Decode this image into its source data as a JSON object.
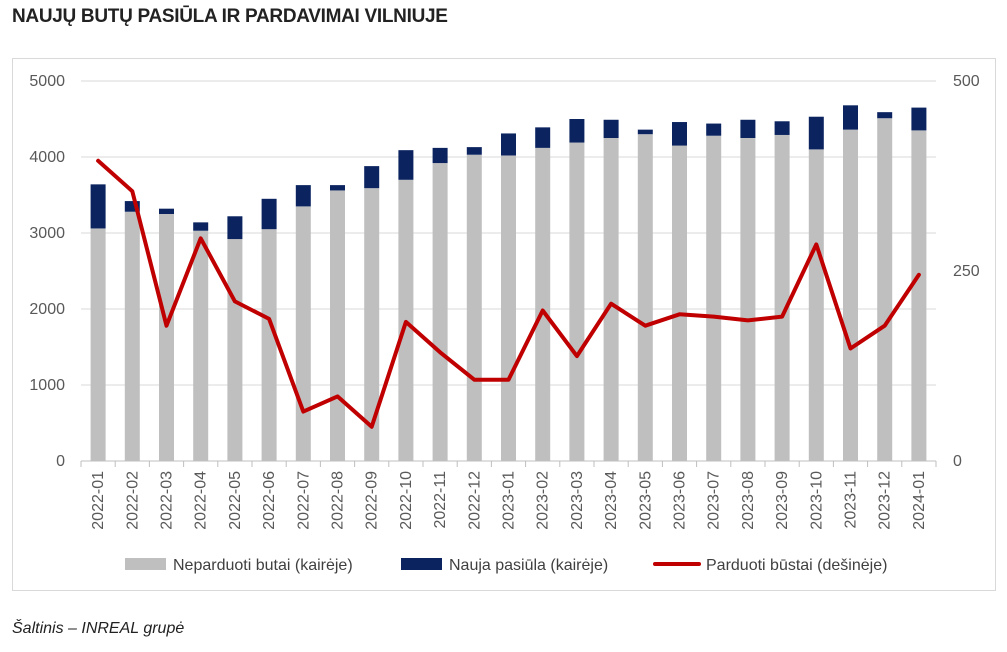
{
  "title": "NAUJŲ BUTŲ PASIŪLA IR PARDAVIMAI VILNIUJE",
  "source": "Šaltinis – INREAL grupė",
  "chart_data": {
    "type": "bar",
    "stacked": true,
    "categories": [
      "2022-01",
      "2022-02",
      "2022-03",
      "2022-04",
      "2022-05",
      "2022-06",
      "2022-07",
      "2022-08",
      "2022-09",
      "2022-10",
      "2022-11",
      "2022-12",
      "2023-01",
      "2023-02",
      "2023-03",
      "2023-04",
      "2023-05",
      "2023-06",
      "2023-07",
      "2023-08",
      "2023-09",
      "2023-10",
      "2023-11",
      "2023-12",
      "2024-01"
    ],
    "series": [
      {
        "name": "Neparduoti butai (kairėje)",
        "type": "bar",
        "axis": "left",
        "color": "#bfbfbf",
        "values": [
          3060,
          3280,
          3250,
          3030,
          2920,
          3050,
          3350,
          3560,
          3590,
          3700,
          3920,
          4030,
          4020,
          4120,
          4190,
          4250,
          4300,
          4150,
          4280,
          4250,
          4290,
          4100,
          4360,
          4510,
          4350
        ]
      },
      {
        "name": "Nauja pasiūla (kairėje)",
        "type": "bar",
        "axis": "left",
        "color": "#0b2460",
        "values": [
          580,
          140,
          70,
          110,
          300,
          400,
          280,
          70,
          290,
          390,
          200,
          100,
          290,
          270,
          310,
          240,
          60,
          310,
          160,
          240,
          180,
          430,
          320,
          80,
          300
        ]
      },
      {
        "name": "Parduoti būstai (dešinėje)",
        "type": "line",
        "axis": "right",
        "color": "#c00000",
        "values": [
          395,
          355,
          178,
          293,
          210,
          187,
          65,
          85,
          45,
          183,
          143,
          107,
          107,
          198,
          138,
          207,
          178,
          193,
          190,
          185,
          190,
          285,
          148,
          178,
          245
        ]
      }
    ],
    "y_left": {
      "min": 0,
      "max": 5000,
      "ticks": [
        0,
        1000,
        2000,
        3000,
        4000,
        5000
      ]
    },
    "y_right": {
      "min": 0,
      "max": 500,
      "ticks": [
        0,
        250,
        500
      ]
    },
    "grid": true,
    "legend_position": "bottom"
  }
}
